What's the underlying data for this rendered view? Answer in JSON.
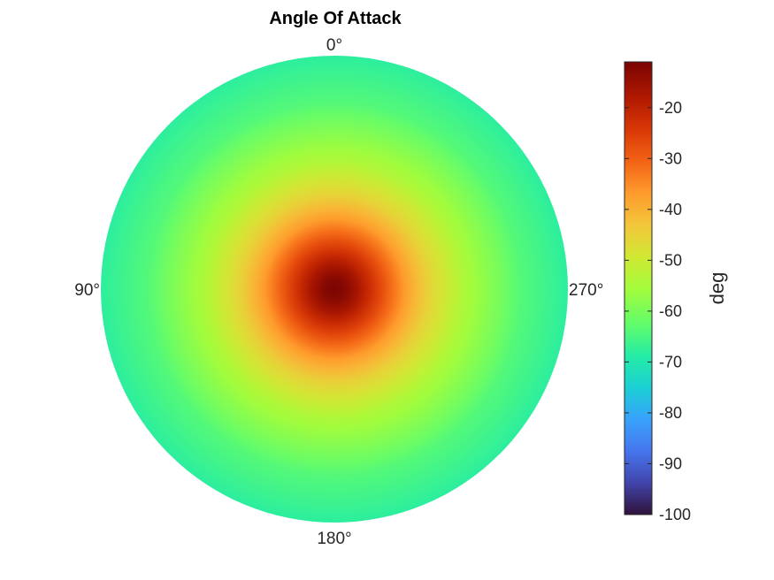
{
  "chart_data": {
    "type": "heatmap",
    "projection": "polar",
    "title": "Angle Of Attack",
    "angle_labels": [
      {
        "angle": 0,
        "text": "0°"
      },
      {
        "angle": 90,
        "text": "90°"
      },
      {
        "angle": 180,
        "text": "180°"
      },
      {
        "angle": 270,
        "text": "270°"
      }
    ],
    "angle_direction": "counterclockwise from top",
    "radial_profile": {
      "radius": [
        0.0,
        0.05,
        0.1,
        0.15,
        0.2,
        0.25,
        0.3,
        0.35,
        0.4,
        0.45,
        0.5,
        0.55,
        0.6,
        0.65,
        0.7,
        0.75,
        0.8,
        0.85,
        0.9,
        0.95,
        1.0
      ],
      "value": [
        -11,
        -13,
        -17,
        -22,
        -27,
        -32,
        -37,
        -41,
        -45,
        -48,
        -51,
        -54,
        -56,
        -58,
        -60,
        -62,
        -64,
        -65,
        -66,
        -67,
        -68
      ]
    },
    "colorbar": {
      "label": "deg",
      "lim": [
        -100,
        -11
      ],
      "ticks": [
        -20,
        -30,
        -40,
        -50,
        -60,
        -70,
        -80,
        -90,
        -100
      ],
      "colormap": "turbo",
      "colormap_stops": [
        {
          "t": 0.0,
          "color": "#30123b"
        },
        {
          "t": 0.07,
          "color": "#4145ab"
        },
        {
          "t": 0.14,
          "color": "#4675ed"
        },
        {
          "t": 0.21,
          "color": "#39a2fc"
        },
        {
          "t": 0.28,
          "color": "#1bcfd4"
        },
        {
          "t": 0.35,
          "color": "#24eca6"
        },
        {
          "t": 0.42,
          "color": "#61fc6c"
        },
        {
          "t": 0.5,
          "color": "#a4fc3b"
        },
        {
          "t": 0.57,
          "color": "#d1e834"
        },
        {
          "t": 0.64,
          "color": "#f3c63a"
        },
        {
          "t": 0.71,
          "color": "#fe9b2d"
        },
        {
          "t": 0.78,
          "color": "#f36315"
        },
        {
          "t": 0.85,
          "color": "#d93806"
        },
        {
          "t": 0.92,
          "color": "#b11901"
        },
        {
          "t": 1.0,
          "color": "#7a0403"
        }
      ]
    },
    "grid": false
  }
}
